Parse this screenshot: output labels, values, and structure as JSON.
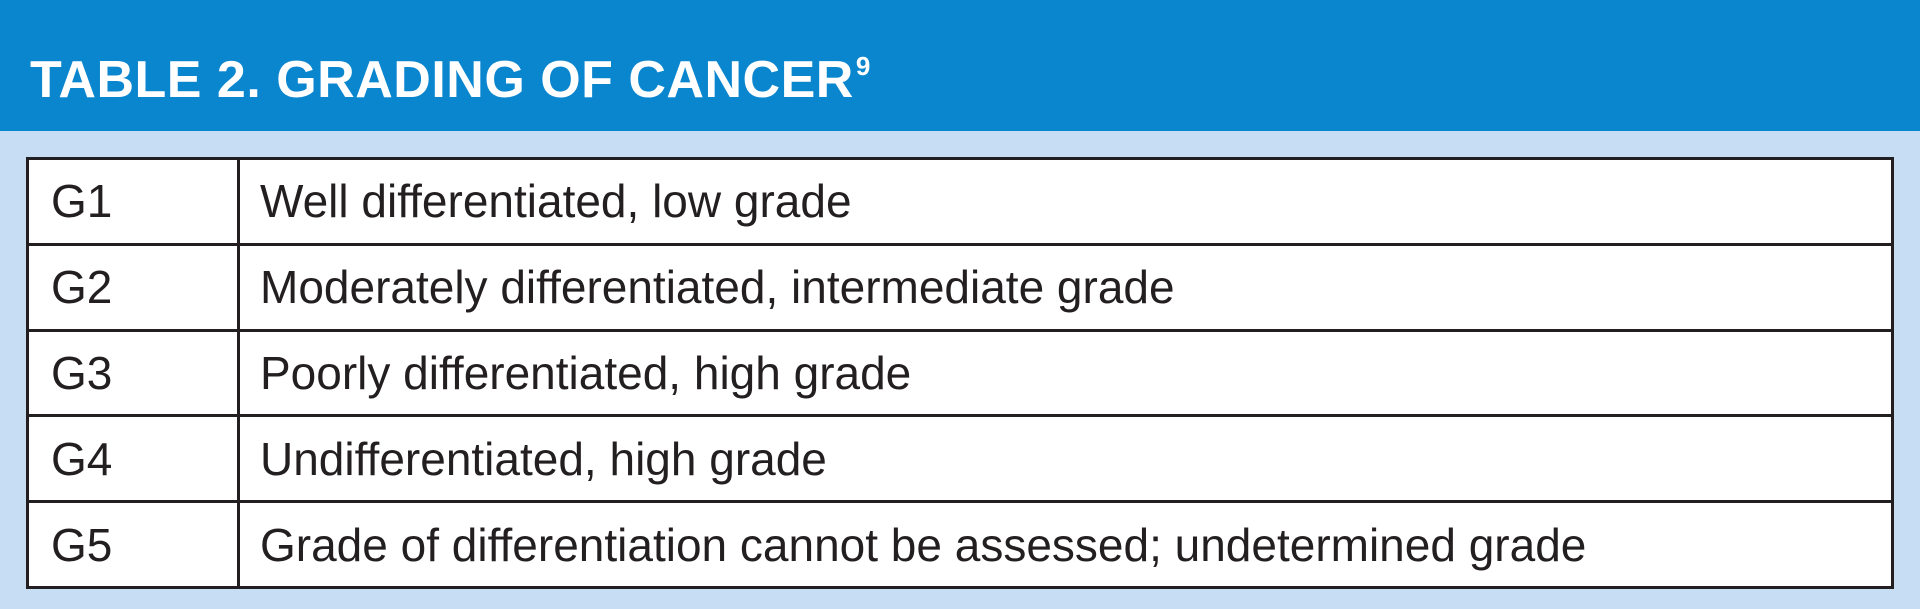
{
  "header": {
    "title": "TABLE 2. GRADING OF CANCER",
    "superscript": "9"
  },
  "colors": {
    "header_background": "#0a86cf",
    "panel_background": "#c6ddf3",
    "text": "#231f20",
    "border": "#231f20"
  },
  "table": {
    "rows": [
      {
        "grade": "G1",
        "description": "Well differentiated, low grade"
      },
      {
        "grade": "G2",
        "description": "Moderately differentiated, intermediate grade"
      },
      {
        "grade": "G3",
        "description": "Poorly differentiated, high grade"
      },
      {
        "grade": "G4",
        "description": "Undifferentiated, high grade"
      },
      {
        "grade": "G5",
        "description": "Grade of differentiation cannot be assessed; undetermined grade"
      }
    ]
  }
}
